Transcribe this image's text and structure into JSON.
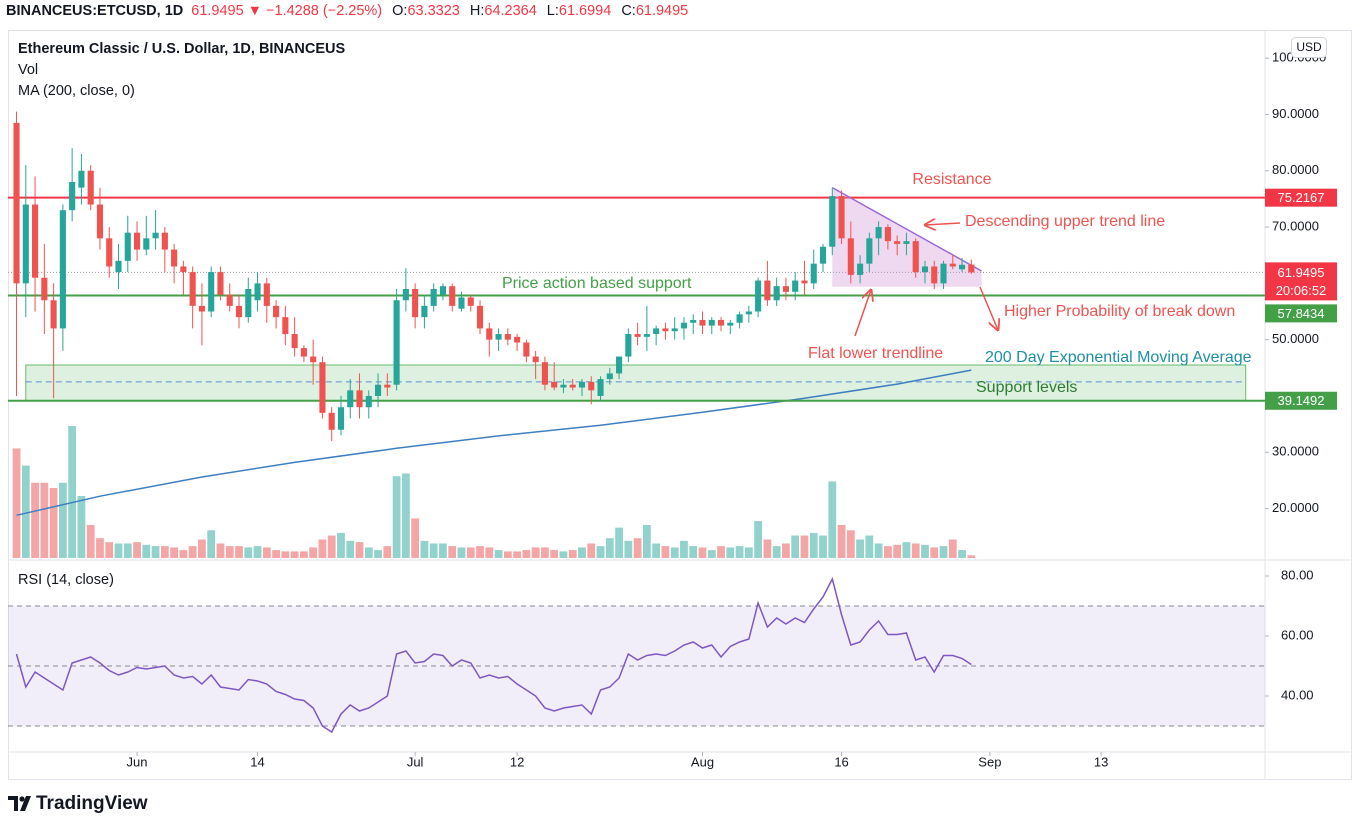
{
  "header": {
    "symbol": "BINANCEUS:ETCUSD, 1D",
    "price": 61.9495,
    "change": "▼ −1.4288 (−2.25%)",
    "ohlc": [
      {
        "label": "O:",
        "value": 63.3323
      },
      {
        "label": "H:",
        "value": 64.2364
      },
      {
        "label": "L:",
        "value": 61.6994
      },
      {
        "label": "C:",
        "value": 61.9495
      }
    ]
  },
  "chart_data": {
    "type": "candlestick",
    "title": "Ethereum Classic / U.S. Dollar, 1D, BINANCEUS",
    "currency": "USD",
    "grid": false,
    "up_color": "#26a69a",
    "down_color": "#ef5350",
    "up_volume_color": "#92d2cc",
    "down_volume_color": "#f4a6a6",
    "xlim": [
      -13.92,
      121.68
    ],
    "xticks": [
      {
        "value": 0,
        "label": "Jun"
      },
      {
        "value": 13,
        "label": "14"
      },
      {
        "value": 30,
        "label": "Jul"
      },
      {
        "value": 41,
        "label": "12"
      },
      {
        "value": 61,
        "label": "Aug"
      },
      {
        "value": 76,
        "label": "16"
      },
      {
        "value": 92,
        "label": "Sep"
      },
      {
        "value": 104,
        "label": "13"
      }
    ],
    "ylim": [
      11.22,
      105.0
    ],
    "yticks": [
      {
        "value": 100,
        "label": "100.0000"
      },
      {
        "value": 90,
        "label": "90.0000"
      },
      {
        "value": 80,
        "label": "80.0000"
      },
      {
        "value": 70,
        "label": "70.0000"
      },
      {
        "value": 50,
        "label": "50.0000"
      },
      {
        "value": 30,
        "label": "30.0000"
      },
      {
        "value": 20,
        "label": "20.0000"
      }
    ],
    "x": [
      -13,
      -12,
      -11,
      -10,
      -9,
      -8,
      -7,
      -6,
      -5,
      -4,
      -3,
      -2,
      -1,
      0,
      1,
      2,
      3,
      4,
      5,
      6,
      7,
      8,
      9,
      10,
      11,
      12,
      13,
      14,
      15,
      16,
      17,
      18,
      19,
      20,
      21,
      22,
      23,
      24,
      25,
      26,
      27,
      28,
      29,
      30,
      31,
      32,
      33,
      34,
      35,
      36,
      37,
      38,
      39,
      40,
      41,
      42,
      43,
      44,
      45,
      46,
      47,
      48,
      49,
      50,
      51,
      52,
      53,
      54,
      55,
      56,
      57,
      58,
      59,
      60,
      61,
      62,
      63,
      64,
      65,
      66,
      67,
      68,
      69,
      70,
      71,
      72,
      73,
      74,
      75,
      76,
      77,
      78,
      79,
      80,
      81,
      82,
      83,
      84,
      85,
      86,
      87,
      88,
      89,
      90
    ],
    "open": [
      88.5,
      60,
      74,
      61,
      57,
      52,
      73,
      77,
      80,
      74,
      68,
      62,
      64,
      69,
      66,
      68,
      69,
      66,
      63,
      62,
      56,
      55,
      62,
      58,
      56,
      54,
      57,
      60,
      56,
      54,
      51,
      48.5,
      47,
      46,
      37,
      34,
      38,
      41,
      38,
      40,
      42,
      42,
      57,
      59,
      54,
      56,
      58,
      59.5,
      55.5,
      57.5,
      56,
      52,
      50,
      51,
      50.5,
      49.5,
      47,
      46,
      42.5,
      41.5,
      42,
      41.5,
      42.5,
      40,
      43,
      44,
      47,
      51,
      50.5,
      51,
      52,
      51.5,
      52,
      53,
      53.5,
      52.5,
      53.5,
      52.5,
      53,
      54.5,
      55,
      60.5,
      57,
      59.5,
      58.5,
      60.5,
      60,
      63.5,
      66.5,
      75.5,
      68,
      61.5,
      63.5,
      68,
      70,
      67.5,
      67,
      67.5,
      62,
      63,
      60,
      63.5,
      62.5,
      63.3323
    ],
    "high": [
      90.5,
      81,
      79,
      67,
      60,
      74,
      84,
      83,
      81,
      77,
      70,
      67,
      72,
      71,
      72,
      73,
      70,
      67,
      64,
      63,
      60,
      63,
      63,
      60,
      58,
      61,
      62,
      61,
      57,
      56,
      54,
      49,
      50,
      47,
      38,
      40,
      43,
      44,
      41,
      44,
      44,
      59,
      62.7,
      60,
      58,
      60,
      60,
      60,
      58.5,
      58,
      57,
      53,
      52,
      52,
      51,
      50,
      48,
      47,
      46,
      43,
      43,
      43,
      43.5,
      43.5,
      45,
      47,
      52,
      53,
      56,
      52.5,
      53,
      54,
      54,
      54.5,
      55,
      54,
      54,
      53.5,
      55,
      56,
      61,
      64,
      61,
      61,
      62,
      64,
      66,
      67,
      77,
      76.5,
      71,
      65,
      69,
      71,
      70.5,
      68.5,
      69,
      68,
      64,
      64,
      64,
      65,
      64.5,
      64.2364
    ],
    "low": [
      40,
      54,
      55,
      51,
      39.6,
      48,
      71,
      74,
      73,
      66,
      61,
      59,
      62,
      64,
      65,
      66,
      62,
      60,
      58,
      52,
      49,
      54,
      57,
      55,
      52,
      53,
      55,
      53,
      52,
      49,
      47,
      46,
      42,
      36,
      32,
      33,
      36,
      36,
      36,
      38,
      40,
      41,
      55,
      52,
      52,
      55,
      57,
      55,
      55,
      55,
      51,
      47,
      48,
      49,
      48,
      46,
      43,
      41,
      41,
      40.5,
      41,
      40,
      38.5,
      39,
      42,
      43,
      46,
      49,
      48,
      49,
      50,
      50,
      50,
      51,
      51,
      51,
      51.5,
      51,
      52,
      53,
      54,
      56,
      56,
      57,
      57,
      58,
      59,
      62,
      65,
      67,
      60,
      60,
      62,
      65,
      66,
      65,
      65,
      61,
      60,
      59,
      59,
      62.5,
      62,
      61.6994
    ],
    "close": [
      60,
      74,
      61,
      57,
      52,
      73,
      78,
      80,
      74,
      68,
      63,
      64,
      69,
      66,
      68,
      69,
      66,
      63,
      62,
      56,
      55,
      62,
      58,
      56,
      54,
      59,
      60,
      56,
      54,
      51,
      48.5,
      47,
      46,
      37,
      34,
      38,
      41,
      38,
      40,
      42,
      41.5,
      57,
      59,
      54,
      56,
      59,
      59.5,
      56,
      57.5,
      56,
      52,
      50,
      51,
      50,
      49.5,
      47,
      46,
      42,
      41.5,
      42,
      41.5,
      42.5,
      41,
      43,
      44,
      47,
      51,
      50.5,
      51,
      52,
      51.5,
      52,
      53,
      53.5,
      52.5,
      53.5,
      52.5,
      53,
      54.5,
      55,
      60.5,
      57,
      59.5,
      58.5,
      60.5,
      60,
      63.5,
      66.5,
      75.5,
      68,
      61.5,
      63.5,
      68,
      70,
      67.5,
      67,
      67.5,
      62,
      63,
      60,
      63.5,
      63,
      63.3,
      61.9495
    ],
    "volume": {
      "name": "Vol",
      "ylim": [
        0,
        400
      ],
      "values": [
        83,
        70,
        57,
        57,
        53,
        57,
        100,
        47,
        25,
        15,
        12,
        11,
        11,
        12,
        10,
        9,
        9,
        8,
        6,
        9,
        14,
        21,
        11,
        9,
        9,
        8,
        9,
        8,
        6,
        5,
        5,
        5,
        8,
        14,
        17,
        19,
        13,
        12,
        8,
        6,
        9,
        62,
        64,
        30,
        13,
        11,
        11,
        9,
        8,
        8,
        9,
        8,
        6,
        5,
        5,
        6,
        8,
        8,
        6,
        5,
        6,
        8,
        11,
        9,
        15,
        23,
        13,
        15,
        25,
        11,
        9,
        8,
        13,
        9,
        8,
        6,
        9,
        8,
        9,
        8,
        28,
        14,
        9,
        11,
        17,
        17,
        19,
        17,
        58,
        25,
        21,
        14,
        17,
        11,
        9,
        10,
        12,
        11,
        10,
        8,
        9,
        14,
        6,
        2
      ]
    },
    "ma": {
      "name": "MA (200, close, 0)",
      "color": "#3d7fc1",
      "x": [
        -13,
        -4,
        7,
        17,
        28,
        39,
        50,
        61,
        72,
        82,
        90
      ],
      "values": [
        18.8,
        22.2,
        25.6,
        28.2,
        30.7,
        32.9,
        34.8,
        37.1,
        39.6,
        42.1,
        44.6
      ]
    },
    "levels": [
      {
        "value": 75.2167,
        "color": "#f23645"
      },
      {
        "value": 57.8434,
        "color": "#43a047"
      },
      {
        "value": 39.1492,
        "color": "#43a047"
      }
    ],
    "last": {
      "value": 61.9495,
      "color": "#f23645",
      "countdown": "20:06:52"
    },
    "support_zone": {
      "x": [
        -12,
        119.6
      ],
      "y": [
        39.1492,
        45.5
      ],
      "midline": 42.5
    },
    "triangle": {
      "x": [
        75,
        91.1
      ],
      "upper": [
        77,
        62.2
      ],
      "lower": 59.4
    },
    "annotations": [
      "Resistance",
      "Descending upper trend line",
      "Price action based support",
      "Higher Probability of break down",
      "Flat lower trendline",
      "200 Day Exponential Moving Average",
      "Support levels"
    ],
    "rsi": {
      "name": "RSI (14, close)",
      "color": "#7e57c2",
      "ylim": [
        21.33,
        84.67
      ],
      "bands": [
        70,
        50,
        30
      ],
      "yticks": [
        {
          "value": 80,
          "label": "80.00"
        },
        {
          "value": 60,
          "label": "60.00"
        },
        {
          "value": 40,
          "label": "40.00"
        }
      ],
      "values": [
        54,
        43,
        48,
        46,
        44,
        42,
        51,
        52,
        53,
        51,
        48.5,
        47,
        48,
        49.5,
        49,
        49.5,
        50,
        47,
        46,
        46.5,
        44,
        47,
        43,
        42.5,
        42,
        45.5,
        45,
        44,
        41.5,
        40.5,
        39,
        38.5,
        36,
        30,
        28,
        34,
        37,
        35,
        36,
        38,
        40,
        54,
        55,
        51,
        51.5,
        54,
        53.5,
        50,
        52,
        51,
        46,
        47,
        46,
        46.5,
        44,
        42,
        40,
        36,
        35,
        36,
        36.5,
        37,
        34,
        42,
        43,
        46,
        54,
        52,
        53.5,
        54,
        53.5,
        55,
        57,
        58,
        56,
        57,
        53,
        56.5,
        58,
        59,
        71,
        63,
        66,
        64,
        66,
        64.5,
        69,
        73,
        79,
        67,
        57,
        58,
        62,
        65,
        60.5,
        60.5,
        61,
        52,
        53,
        48,
        53.5,
        53.5,
        52.5,
        50.5
      ]
    }
  },
  "footer": {
    "brand": "TradingView"
  }
}
